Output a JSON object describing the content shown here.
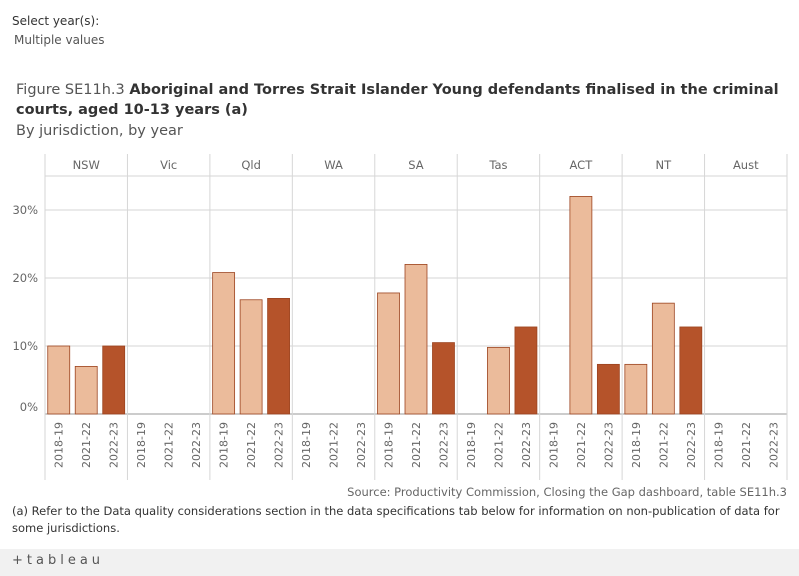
{
  "filter": {
    "label": "Select year(s):",
    "value": "Multiple values"
  },
  "figure": {
    "prefix": "Figure SE11h.3 ",
    "title": "Aboriginal and Torres Strait Islander Young defendants finalised in the criminal courts, aged 10-13 years (a)",
    "subtitle": "By jurisdiction, by year"
  },
  "colors": {
    "light": "#ebbb9b",
    "dark": "#b5532a",
    "stroke": "#9c4420",
    "grid": "#d6d6d6",
    "axis_text": "#666666"
  },
  "chart_data": {
    "type": "bar",
    "panels": [
      "NSW",
      "Vic",
      "Qld",
      "WA",
      "SA",
      "Tas",
      "ACT",
      "NT",
      "Aust"
    ],
    "categories": [
      "2018-19",
      "2021-22",
      "2022-23"
    ],
    "values": [
      [
        10,
        7,
        10
      ],
      [
        null,
        null,
        null
      ],
      [
        20.8,
        16.8,
        17
      ],
      [
        null,
        null,
        null
      ],
      [
        17.8,
        22,
        10.5
      ],
      [
        null,
        9.8,
        12.8
      ],
      [
        null,
        32,
        7.3
      ],
      [
        7.3,
        16.3,
        12.8
      ],
      [
        null,
        null,
        null
      ]
    ],
    "y_ticks": [
      "0%",
      "10%",
      "20%",
      "30%"
    ],
    "ylim": [
      0,
      35
    ],
    "xlabel": "",
    "ylabel": "",
    "grid": true
  },
  "source": "Source: Productivity Commission, Closing the Gap dashboard, table SE11h.3",
  "footnote": "(a) Refer to the Data quality considerations section in the data specifications tab below for information on non-publication of data for some jurisdictions.",
  "logo_text": "+tableau"
}
